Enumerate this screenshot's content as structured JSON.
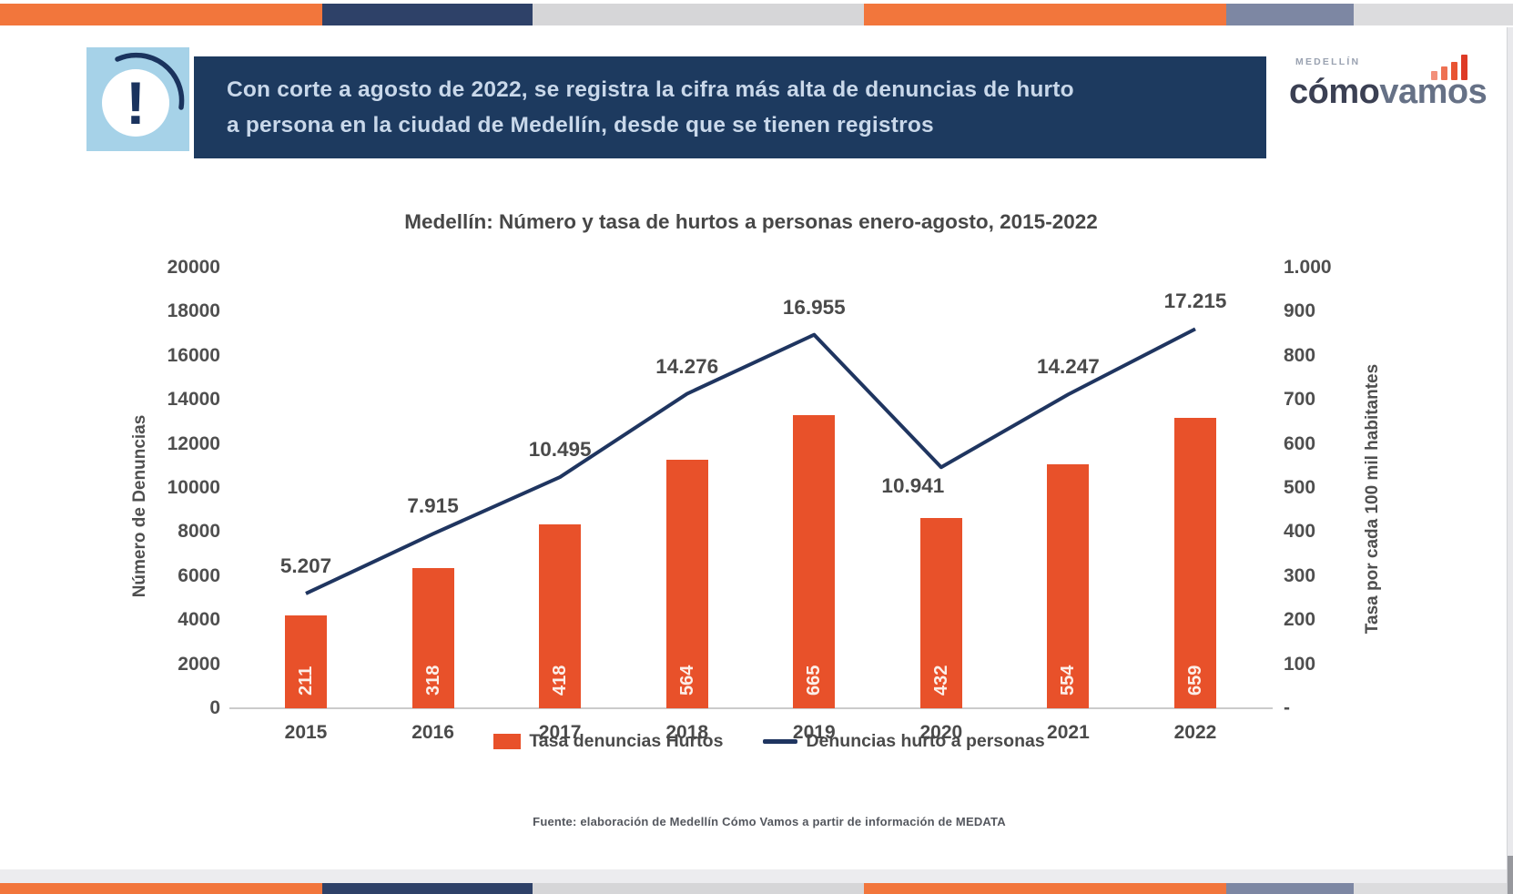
{
  "colors": {
    "stripe_orange": "#F2763C",
    "stripe_navy": "#2E4168",
    "stripe_slate": "#7D87A3",
    "stripe_gray": "#D6D6D8",
    "banner_navy": "#1D3A5F",
    "alert_light_blue": "#A6D2E8",
    "bar_orange": "#E8512A",
    "line_navy": "#1F3560"
  },
  "header": {
    "banner": {
      "line1": "Con corte a agosto de 2022, se registra la cifra más alta de denuncias de hurto",
      "line2": "a persona en la ciudad de Medellín, desde que se tienen registros"
    },
    "alert_icon": "exclamation-icon",
    "logo": {
      "city": "MEDELLÍN",
      "brand_bold": "cómo",
      "brand_light": "vamos",
      "icon": "bar-chart-icon"
    }
  },
  "chart_data": {
    "type": "bar+line combo",
    "title": "Medellín: Número y tasa de hurtos a personas enero-agosto, 2015-2022",
    "categories": [
      "2015",
      "2016",
      "2017",
      "2018",
      "2019",
      "2020",
      "2021",
      "2022"
    ],
    "series": [
      {
        "name": "Tasa denuncias Hurtos",
        "type": "bar",
        "axis": "right",
        "color": "#E8512A",
        "values": [
          211,
          318,
          418,
          564,
          665,
          432,
          554,
          659
        ],
        "value_labels": [
          "211",
          "318",
          "418",
          "564",
          "665",
          "432",
          "554",
          "659"
        ],
        "label_placement": "inside-base rotated white"
      },
      {
        "name": "Denuncias hurto a personas",
        "type": "line",
        "axis": "left",
        "color": "#1F3560",
        "values": [
          5207,
          7915,
          10495,
          14276,
          16955,
          10941,
          14247,
          17215
        ],
        "value_labels": [
          "5.207",
          "7.915",
          "10.495",
          "14.276",
          "16.955",
          "10.941",
          "14.247",
          "17.215"
        ],
        "label_positions": [
          "above",
          "above",
          "above",
          "above",
          "above",
          "below",
          "above",
          "above"
        ]
      }
    ],
    "left_axis": {
      "title": "Número de Denuncias",
      "min": 0,
      "max": 20000,
      "tick_step": 2000,
      "ticks": [
        "20000",
        "18000",
        "16000",
        "14000",
        "12000",
        "10000",
        "8000",
        "6000",
        "4000",
        "2000",
        "0"
      ]
    },
    "right_axis": {
      "title": "Tasa por cada 100 mil habitantes",
      "min": 0,
      "max": 1000,
      "tick_step": 100,
      "ticks": [
        "1.000",
        "900",
        "800",
        "700",
        "600",
        "500",
        "400",
        "300",
        "200",
        "100",
        "-"
      ]
    },
    "legend": {
      "position": "bottom",
      "entries": [
        "Tasa denuncias Hurtos",
        "Denuncias hurto a personas"
      ]
    },
    "grid": "off",
    "source": "Fuente: elaboración de Medellín Cómo Vamos a partir de información de MEDATA"
  }
}
